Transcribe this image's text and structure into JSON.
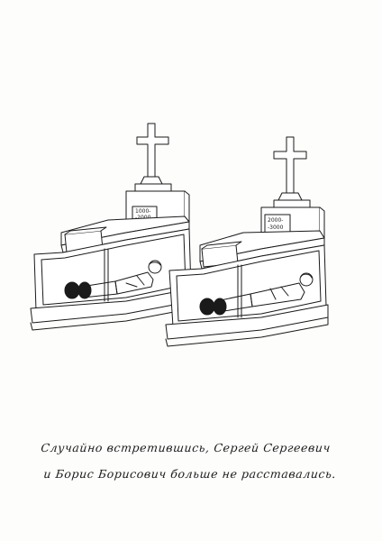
{
  "caption": {
    "line1": "Случайно встретившись, Сергей Сергеевич",
    "line2": "и Борис Борисович больше не расставались."
  },
  "tombs": {
    "left": {
      "price_line1": "1000-",
      "price_line2": "-2000"
    },
    "right": {
      "price_line1": "2000-",
      "price_line2": "-3000"
    }
  },
  "colors": {
    "ink": "#1a1a1a",
    "paper": "#fdfdfc"
  }
}
